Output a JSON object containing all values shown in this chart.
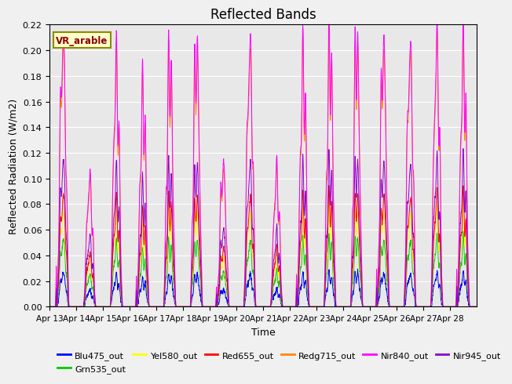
{
  "title": "Reflected Bands",
  "xlabel": "Time",
  "ylabel": "Reflected Radiation (W/m2)",
  "annotation": "VR_arable",
  "ylim": [
    0.0,
    0.22
  ],
  "yticks": [
    0.0,
    0.02,
    0.04,
    0.06,
    0.08,
    0.1,
    0.12,
    0.14,
    0.16,
    0.18,
    0.2,
    0.22
  ],
  "xtick_labels": [
    "Apr 13",
    "Apr 14",
    "Apr 15",
    "Apr 16",
    "Apr 17",
    "Apr 18",
    "Apr 19",
    "Apr 20",
    "Apr 21",
    "Apr 22",
    "Apr 23",
    "Apr 24",
    "Apr 25",
    "Apr 26",
    "Apr 27",
    "Apr 28"
  ],
  "series": [
    {
      "name": "Blu475_out",
      "color": "#0000ff"
    },
    {
      "name": "Grn535_out",
      "color": "#00cc00"
    },
    {
      "name": "Yel580_out",
      "color": "#ffff00"
    },
    {
      "name": "Red655_out",
      "color": "#ff0000"
    },
    {
      "name": "Redg715_out",
      "color": "#ff8800"
    },
    {
      "name": "Nir840_out",
      "color": "#ff00ff"
    },
    {
      "name": "Nir945_out",
      "color": "#8800cc"
    }
  ],
  "background_color": "#e8e8e8",
  "fig_background": "#f0f0f0",
  "grid_color": "#ffffff",
  "title_fontsize": 12,
  "days": 16,
  "day_peak_scales": [
    0.95,
    0.45,
    0.85,
    0.75,
    0.88,
    0.92,
    0.5,
    0.91,
    0.47,
    0.86,
    0.92,
    0.94,
    0.93,
    0.91,
    0.92,
    0.9
  ],
  "band_scales": {
    "Blu475_out": 0.026,
    "Grn535_out": 0.053,
    "Yel580_out": 0.075,
    "Red655_out": 0.088,
    "Redg715_out": 0.205,
    "Nir840_out": 0.215,
    "Nir945_out": 0.115
  }
}
